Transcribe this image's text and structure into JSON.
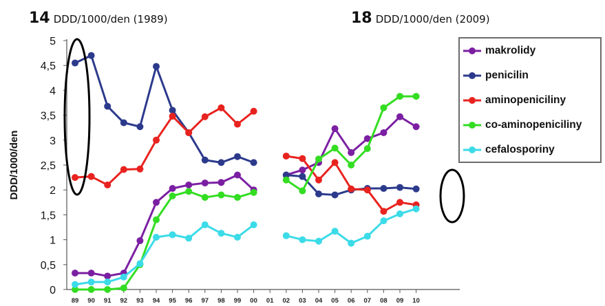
{
  "header_left": {
    "number": "14",
    "text": "DDD/1000/den (1989)"
  },
  "header_right": {
    "number": "18",
    "text": "DDD/1000/den  (2009)"
  },
  "chart_data": {
    "type": "line",
    "ylabel": "DDD/1000/den",
    "xlabel": "",
    "ylim": [
      0,
      5
    ],
    "yticks": [
      "0",
      "0,5",
      "1",
      "1,5",
      "2",
      "2,5",
      "3",
      "3,5",
      "4",
      "4,5",
      "5"
    ],
    "categories": [
      "89",
      "90",
      "91",
      "92",
      "93",
      "94",
      "95",
      "96",
      "97",
      "98",
      "99",
      "00",
      "01",
      "02",
      "03",
      "04",
      "05",
      "06",
      "07",
      "08",
      "09",
      "10"
    ],
    "legend_position": "top-right",
    "series": [
      {
        "name": "makrolidy",
        "color": "#7b1fa2",
        "values": [
          0.33,
          0.33,
          0.27,
          0.33,
          0.98,
          1.75,
          2.03,
          2.1,
          2.14,
          2.15,
          2.3,
          2.0,
          null,
          2.3,
          2.4,
          2.55,
          3.23,
          2.75,
          3.03,
          3.15,
          3.47,
          3.27
        ]
      },
      {
        "name": "penicilin",
        "color": "#2c3a8c",
        "values": [
          4.55,
          4.7,
          3.68,
          3.35,
          3.27,
          4.48,
          3.6,
          3.15,
          2.6,
          2.55,
          2.67,
          2.55,
          null,
          2.3,
          2.27,
          1.92,
          1.9,
          2.0,
          2.03,
          2.03,
          2.05,
          2.02
        ]
      },
      {
        "name": "aminopeniciliny",
        "color": "#e8231f",
        "values": [
          2.25,
          2.27,
          2.1,
          2.41,
          2.42,
          3.0,
          3.48,
          3.15,
          3.47,
          3.65,
          3.32,
          3.58,
          null,
          2.68,
          2.63,
          2.2,
          2.55,
          2.02,
          2.0,
          1.57,
          1.75,
          1.7
        ]
      },
      {
        "name": "co-aminopeniciliny",
        "color": "#33dd22",
        "values": [
          0.0,
          0.0,
          0.0,
          0.03,
          0.5,
          1.4,
          1.88,
          1.97,
          1.85,
          1.9,
          1.85,
          1.95,
          null,
          2.2,
          1.98,
          2.62,
          2.84,
          2.5,
          2.83,
          3.65,
          3.88,
          3.88
        ]
      },
      {
        "name": "cefalosporiny",
        "color": "#3cdbe8",
        "values": [
          0.1,
          0.15,
          0.15,
          0.25,
          0.52,
          1.05,
          1.1,
          1.03,
          1.3,
          1.13,
          1.05,
          1.3,
          null,
          1.08,
          1.0,
          0.97,
          1.17,
          0.93,
          1.07,
          1.38,
          1.52,
          1.62
        ]
      }
    ],
    "annotations": [
      {
        "shape": "ellipse",
        "around": "89 values, y 2 to 5"
      },
      {
        "shape": "ellipse",
        "around": "10 values, y 1.5 to 2.2"
      }
    ]
  }
}
